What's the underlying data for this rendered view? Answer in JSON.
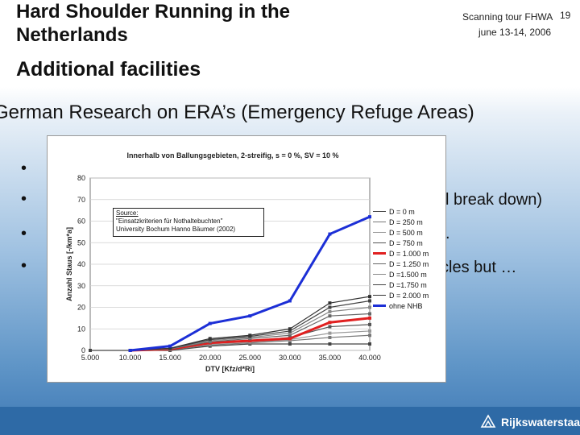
{
  "slide": {
    "title_line1": "Hard Shoulder Running in the",
    "title_line2": "Netherlands",
    "subtitle": "Additional facilities",
    "meta_line1": "Scanning tour FHWA",
    "meta_line2": "june 13-14, 2006",
    "page_number": "19",
    "heading": "German Research on ERA’s (Emergency Refuge Areas)",
    "bullets": [
      {
        "marker": "•",
        "text": ""
      },
      {
        "marker": "•",
        "text": "l break down)"
      },
      {
        "marker": "•",
        "text": "."
      },
      {
        "marker": "•",
        "text": "cles but …"
      }
    ],
    "footer_logo": "Rijkswaterstaat"
  },
  "source_box": {
    "label": "Source:",
    "line2": "\"Einsatzkriterien für Nothaltebuchten\"",
    "line3": "University Bochum Hanno Bäumer (2002)"
  },
  "chart_data": {
    "type": "line",
    "title": "Innerhalb von Ballungsgebieten, 2-streifig, s = 0 %, SV = 10 %",
    "xlabel": "DTV [Kfz/d*Ri]",
    "ylabel": "Anzahl Staus [-/km*a]",
    "x": [
      5000,
      10000,
      15000,
      20000,
      25000,
      30000,
      35000,
      40000
    ],
    "x_tick_labels": [
      "5.000",
      "10.000",
      "15.000",
      "20.000",
      "25.000",
      "30.000",
      "35.000",
      "40.000"
    ],
    "ylim": [
      0,
      80
    ],
    "y_ticks": [
      0,
      10,
      20,
      30,
      40,
      50,
      60,
      70,
      80
    ],
    "series": [
      {
        "name": "D = 0 m",
        "color": "#444444",
        "values": [
          0,
          0,
          0,
          2,
          3,
          3,
          3,
          3
        ]
      },
      {
        "name": "D = 250 m",
        "color": "#777777",
        "values": [
          null,
          0,
          0.3,
          2.5,
          3.5,
          4.5,
          6,
          7
        ]
      },
      {
        "name": "D = 500 m",
        "color": "#999999",
        "values": [
          null,
          0,
          0.4,
          3,
          4,
          5,
          8,
          9
        ]
      },
      {
        "name": "D = 750 m",
        "color": "#555555",
        "values": [
          null,
          0,
          0.5,
          3.5,
          4.5,
          6,
          11,
          12
        ]
      },
      {
        "name": "D = 1.000 m",
        "color": "#e02020",
        "values": [
          null,
          0,
          0.6,
          3.5,
          4.5,
          5.5,
          13,
          15
        ]
      },
      {
        "name": "D = 1.250 m",
        "color": "#666666",
        "values": [
          null,
          0,
          0.7,
          4,
          5.5,
          7,
          16,
          17
        ]
      },
      {
        "name": "D =1.500 m",
        "color": "#888888",
        "values": [
          null,
          0,
          0.8,
          4.5,
          6,
          8,
          18,
          20
        ]
      },
      {
        "name": "D =1.750 m",
        "color": "#444444",
        "values": [
          null,
          0,
          0.9,
          5,
          6.5,
          9,
          20,
          23
        ]
      },
      {
        "name": "D = 2.000 m",
        "color": "#333333",
        "values": [
          null,
          0,
          1,
          5.5,
          7,
          10,
          22,
          25
        ]
      },
      {
        "name": "ohne NHB",
        "color": "#1c2fd6",
        "values": [
          null,
          0,
          2,
          12.5,
          16,
          23,
          54,
          62
        ]
      }
    ]
  }
}
